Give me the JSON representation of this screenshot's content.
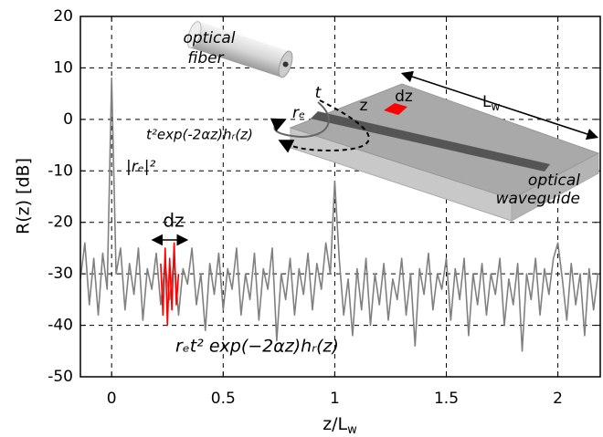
{
  "chart_data": {
    "type": "line",
    "xlabel": {
      "text": "z/L",
      "sub": "w"
    },
    "ylabel": "R(z) [dB]",
    "xlim": [
      -0.14,
      2.19
    ],
    "ylim": [
      -50,
      20
    ],
    "xticks": [
      0,
      0.5,
      1,
      1.5,
      2
    ],
    "yticks": [
      -50,
      -40,
      -30,
      -20,
      -10,
      0,
      10,
      20
    ],
    "grid": true,
    "series": [
      {
        "color": "#808080",
        "x": [
          -0.14,
          -0.12,
          -0.1,
          -0.08,
          -0.06,
          -0.04,
          -0.02,
          0,
          0.02,
          0.04,
          0.06,
          0.08,
          0.1,
          0.12,
          0.14,
          0.16,
          0.18,
          0.2,
          0.22,
          0.24,
          0.26,
          0.28,
          0.3,
          0.32,
          0.34,
          0.36,
          0.38,
          0.4,
          0.42,
          0.44,
          0.46,
          0.48,
          0.5,
          0.52,
          0.54,
          0.56,
          0.58,
          0.6,
          0.62,
          0.64,
          0.66,
          0.68,
          0.7,
          0.72,
          0.74,
          0.76,
          0.78,
          0.8,
          0.82,
          0.84,
          0.86,
          0.88,
          0.9,
          0.92,
          0.94,
          0.96,
          0.98,
          1,
          1.02,
          1.04,
          1.06,
          1.08,
          1.1,
          1.12,
          1.14,
          1.16,
          1.18,
          1.2,
          1.22,
          1.24,
          1.26,
          1.28,
          1.3,
          1.32,
          1.34,
          1.36,
          1.38,
          1.4,
          1.42,
          1.44,
          1.46,
          1.48,
          1.5,
          1.52,
          1.54,
          1.56,
          1.58,
          1.6,
          1.62,
          1.64,
          1.66,
          1.68,
          1.7,
          1.72,
          1.74,
          1.76,
          1.78,
          1.8,
          1.82,
          1.84,
          1.86,
          1.88,
          1.9,
          1.92,
          1.94,
          1.96,
          1.98,
          2,
          2.02,
          2.04,
          2.06,
          2.08,
          2.1,
          2.12,
          2.14,
          2.16,
          2.18
        ],
        "values": [
          -31,
          -24,
          -36,
          -27,
          -38,
          -26,
          -33,
          8,
          -30,
          -25,
          -37,
          -28,
          -34,
          -25,
          -39,
          -29,
          -33,
          -26,
          -36,
          -28,
          -35,
          -27,
          -38,
          -29,
          -32,
          -25,
          -36,
          -30,
          -41,
          -28,
          -34,
          -26,
          -37,
          -29,
          -33,
          -25,
          -38,
          -30,
          -35,
          -26,
          -39,
          -29,
          -33,
          -25,
          -43,
          -30,
          -35,
          -27,
          -38,
          -29,
          -34,
          -26,
          -37,
          -28,
          -33,
          -24,
          -30,
          -12,
          -27,
          -38,
          -31,
          -42,
          -29,
          -37,
          -27,
          -40,
          -30,
          -36,
          -28,
          -39,
          -31,
          -35,
          -27,
          -38,
          -30,
          -44,
          -29,
          -34,
          -26,
          -37,
          -30,
          -33,
          -27,
          -39,
          -29,
          -35,
          -27,
          -42,
          -30,
          -36,
          -28,
          -38,
          -30,
          -34,
          -27,
          -40,
          -31,
          -36,
          -28,
          -45,
          -30,
          -35,
          -27,
          -38,
          -29,
          -34,
          -27,
          -24,
          -31,
          -39,
          -28,
          -36,
          -30,
          -42,
          -29,
          -37,
          -30
        ]
      },
      {
        "color": "#ff0000",
        "x": [
          0.22,
          0.23,
          0.24,
          0.25,
          0.26,
          0.27,
          0.28,
          0.29,
          0.3
        ],
        "values": [
          -28,
          -38,
          -25,
          -40,
          -27,
          -37,
          -24,
          -36,
          -30
        ]
      }
    ],
    "annotations": {
      "fiber_1": "optical",
      "fiber_2": "fiber",
      "t": "t",
      "re": "rₑ",
      "z": "z",
      "dz_inset": "dz",
      "Lw": {
        "text": "L",
        "sub": "w"
      },
      "return": "t²exp(-2αz)hᵣ(z)",
      "waveguide_1": "optical",
      "waveguide_2": "waveguide",
      "re_sq": "|rₑ|²",
      "dz": "dz",
      "formula": "rₑt² exp(−2αz)hᵣ(z)"
    }
  }
}
